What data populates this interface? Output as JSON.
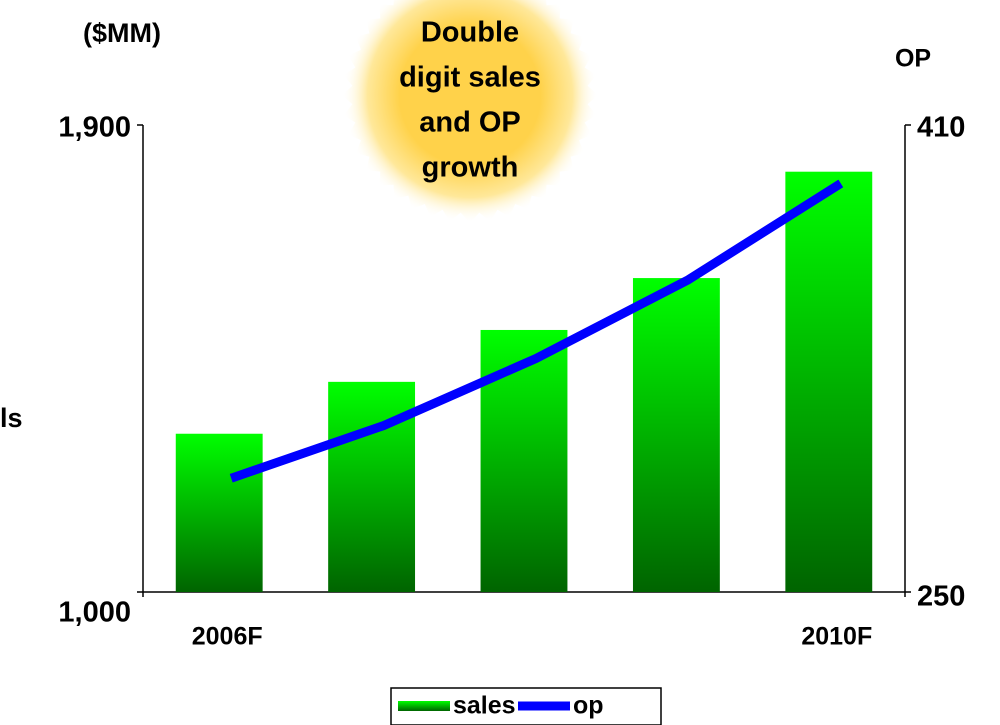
{
  "chart_data": {
    "type": "bar_line",
    "y_label": "($MM)",
    "y_side_label": "ls",
    "y2_label": "OP",
    "annotation": [
      "Double",
      "digit sales",
      "and OP",
      "growth"
    ],
    "categories": [
      "2006F",
      null,
      null,
      null,
      "2010F"
    ],
    "series": [
      {
        "name": "sales",
        "color": "#00cc00",
        "type": "bar",
        "values": [
          1305,
          1405,
          1505,
          1605,
          1810
        ]
      },
      {
        "name": "op",
        "color": "#0000ff",
        "type": "line",
        "axis": "y2",
        "values": [
          289,
          307,
          330,
          357,
          390
        ]
      }
    ],
    "ylim": [
      1000,
      1900
    ],
    "yticks": [
      {
        "value": 1000,
        "label": "1,000"
      },
      {
        "value": 1900,
        "label": "1,900"
      }
    ],
    "y2lim": [
      250,
      410
    ],
    "y2ticks": [
      250,
      410
    ],
    "legend": "bottom"
  }
}
